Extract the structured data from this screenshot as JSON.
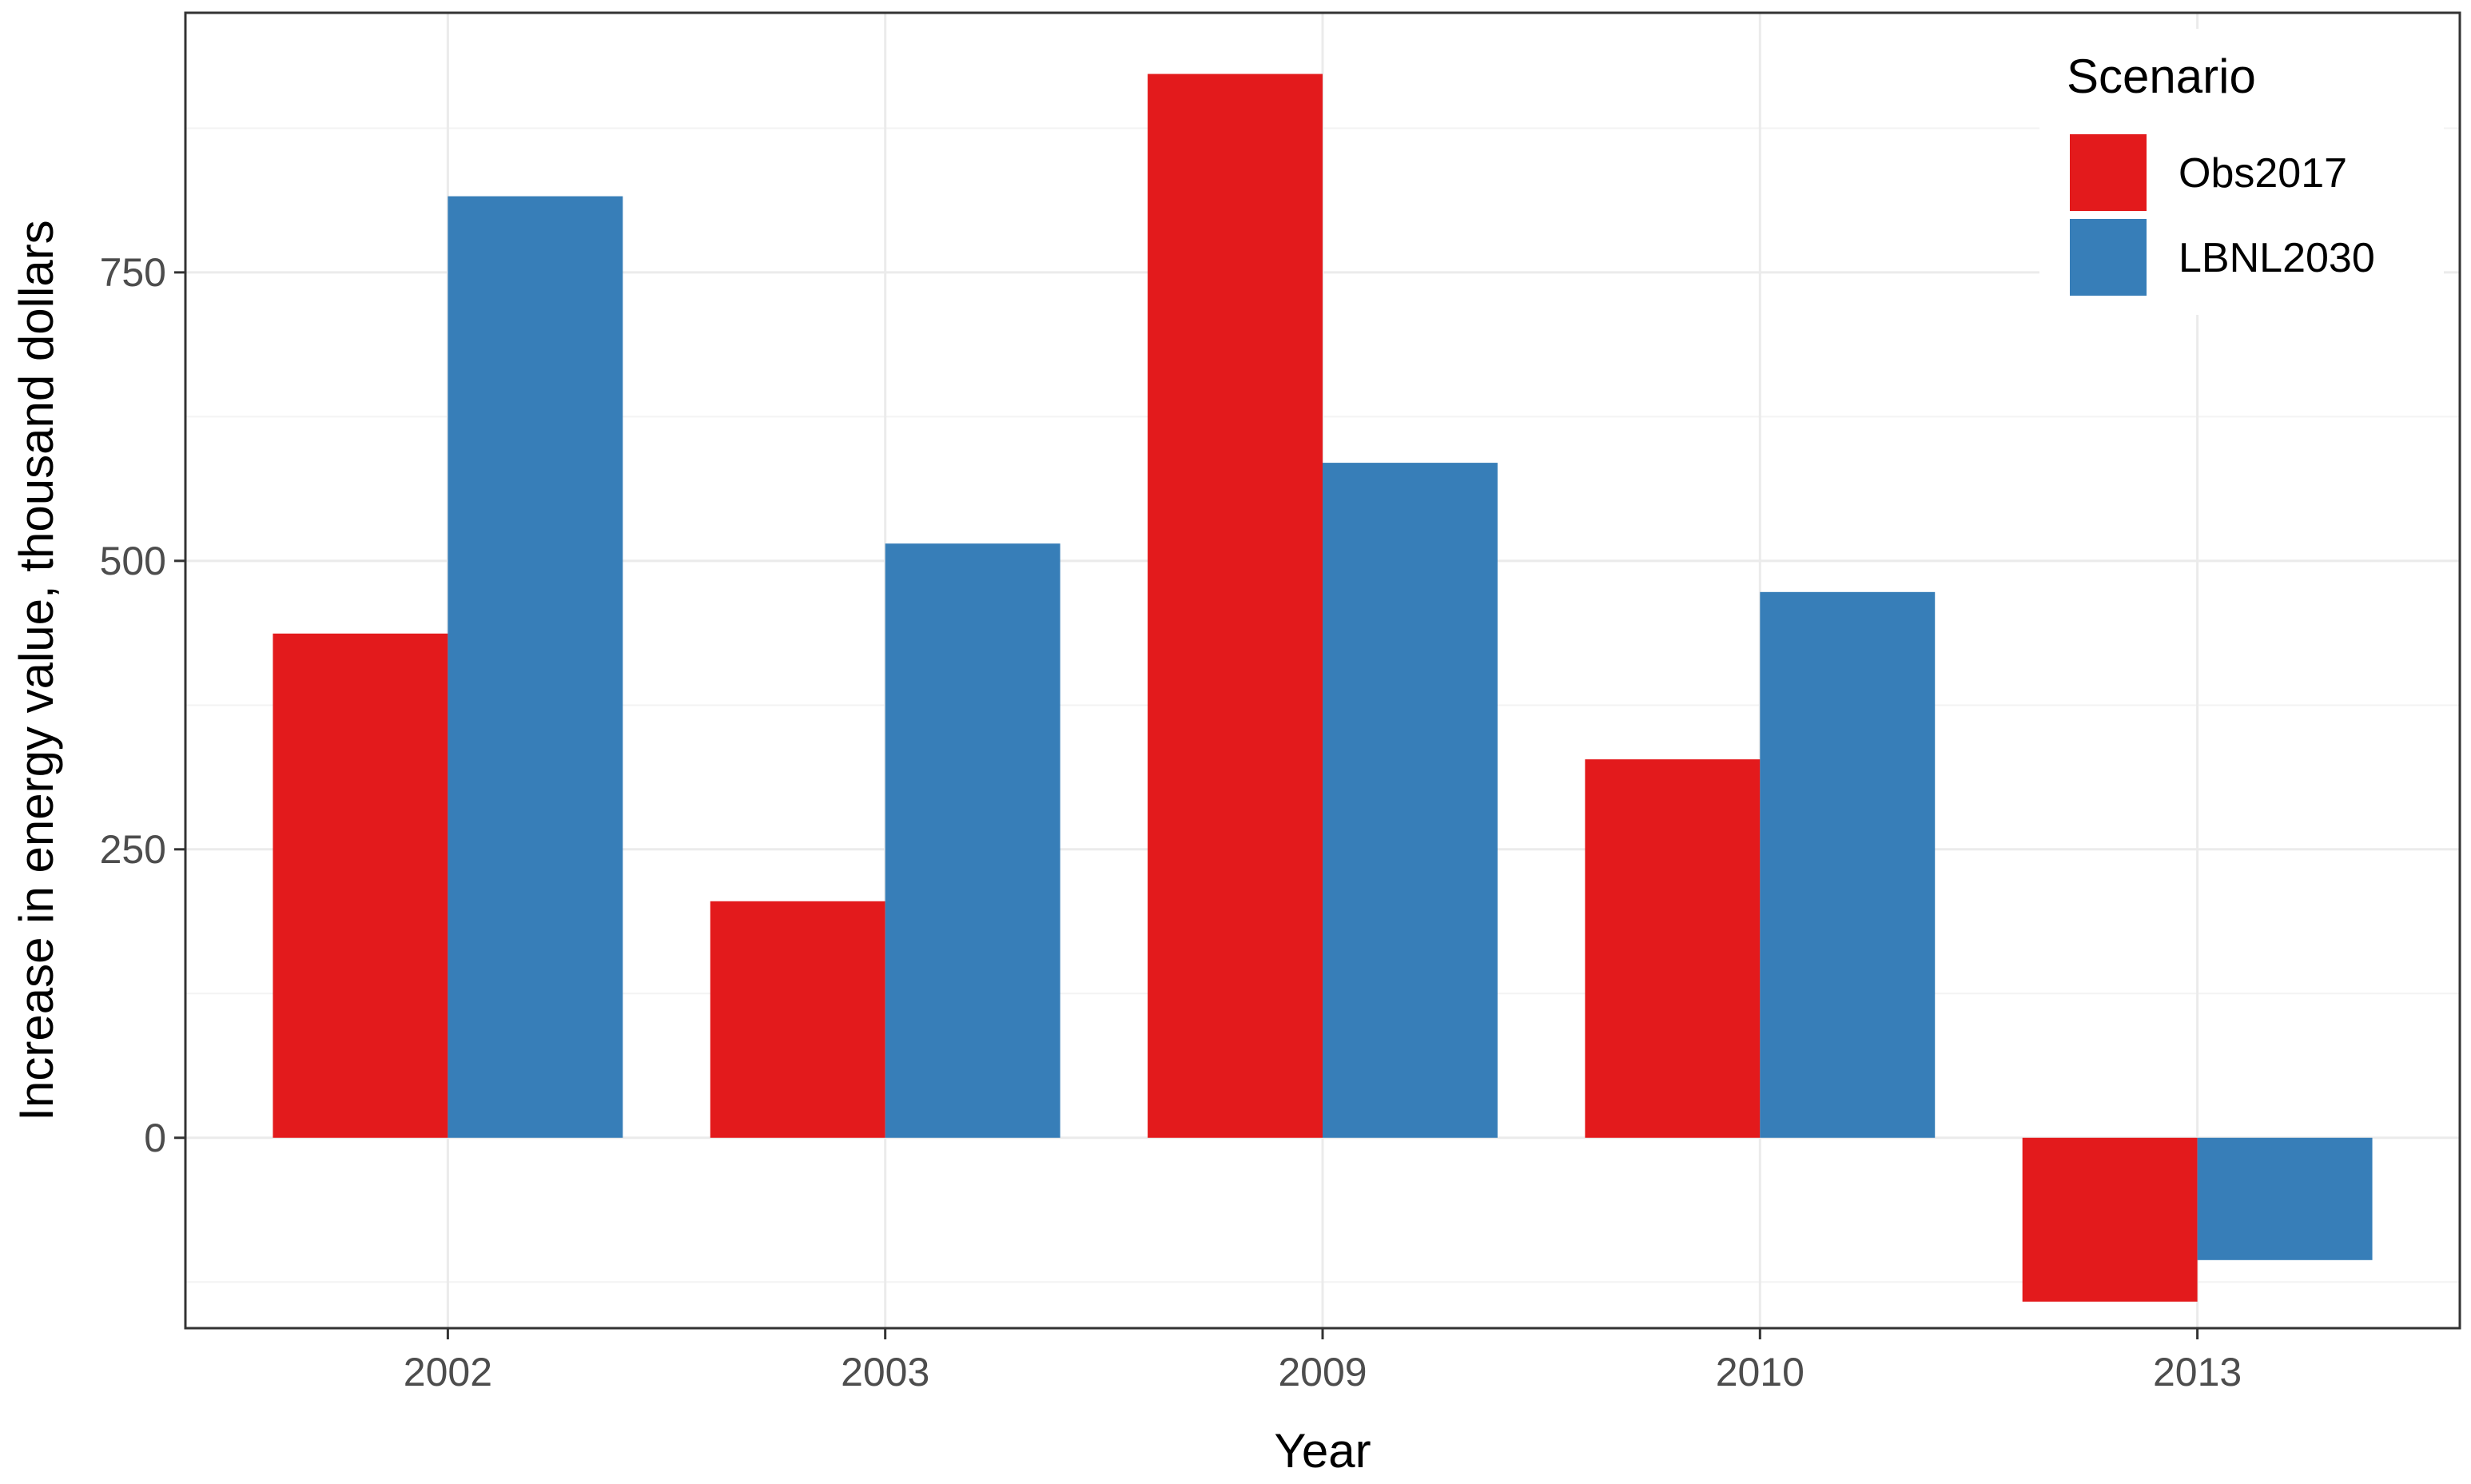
{
  "chart_data": {
    "type": "bar",
    "categories": [
      "2002",
      "2003",
      "2009",
      "2010",
      "2013"
    ],
    "series": [
      {
        "name": "Obs2017",
        "color": "#e31a1c",
        "values": [
          437,
          205,
          922,
          328,
          -142
        ]
      },
      {
        "name": "LBNL2030",
        "color": "#377eb8",
        "values": [
          816,
          515,
          585,
          473,
          -106
        ]
      }
    ],
    "xlabel": "Year",
    "ylabel": "Increase in energy value, thousand dollars",
    "ylim": [
      -165,
      975
    ],
    "yticks": [
      0,
      250,
      500,
      750
    ],
    "yticks_labels": [
      "0",
      "250",
      "500",
      "750"
    ],
    "legend": {
      "title": "Scenario",
      "position": "top-right"
    },
    "grid": true
  }
}
